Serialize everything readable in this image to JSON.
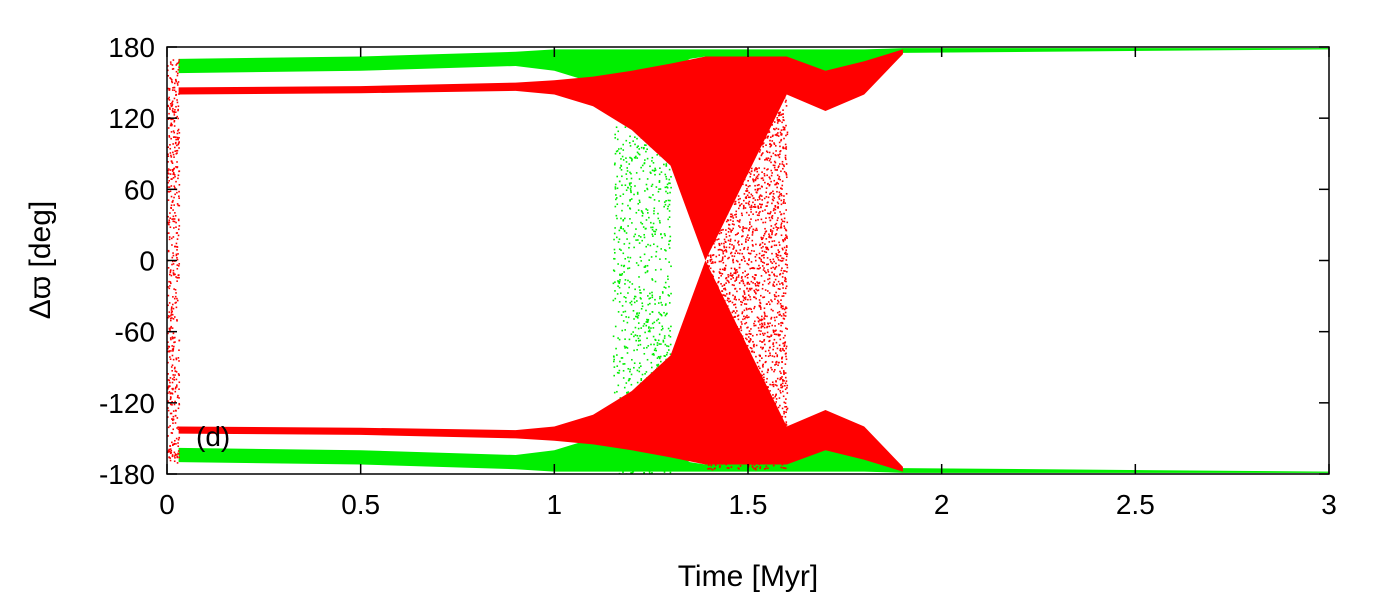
{
  "chart_data": {
    "type": "scatter",
    "title": "",
    "xlabel": "Time [Myr]",
    "ylabel": "Δϖ [deg]",
    "xlim": [
      0,
      3
    ],
    "ylim": [
      -180,
      180
    ],
    "xticks": [
      0,
      0.5,
      1,
      1.5,
      2,
      2.5,
      3
    ],
    "xtick_labels": [
      "0",
      "0.5",
      "1",
      "1.5",
      "2",
      "2.5",
      "3"
    ],
    "yticks": [
      -180,
      -120,
      -60,
      0,
      60,
      120,
      180
    ],
    "ytick_labels": [
      "-180",
      "-120",
      "-60",
      "0",
      "60",
      "120",
      "180"
    ],
    "annotation": "(d)",
    "grid": false,
    "legend": "none",
    "colors": {
      "series_a": "#00ee00",
      "series_b": "#ff0000"
    },
    "series": [
      {
        "color": "#00ee00",
        "band_envelope": {
          "x": [
            0.03,
            0.5,
            0.9,
            1.0,
            1.1,
            1.2,
            1.3,
            1.35,
            1.39,
            1.6,
            1.7,
            1.8,
            1.9,
            3.0
          ],
          "lower": [
            158,
            160,
            164,
            160,
            150,
            120,
            160,
            170,
            172,
            164,
            155,
            160,
            175,
            178
          ],
          "upper": [
            170,
            172,
            176,
            178,
            178,
            178,
            178,
            178,
            178,
            178,
            178,
            178,
            179,
            179
          ]
        },
        "scattered_region": {
          "x": [
            1.15,
            1.3
          ],
          "y": [
            -180,
            130
          ]
        }
      },
      {
        "color": "#ff0000",
        "band_envelope": {
          "x": [
            0.03,
            0.5,
            0.9,
            1.0,
            1.1,
            1.2,
            1.3,
            1.39,
            1.6,
            1.7,
            1.8,
            1.9
          ],
          "lower": [
            140,
            141,
            143,
            140,
            130,
            110,
            80,
            0,
            140,
            126,
            140,
            174
          ],
          "upper": [
            146,
            147,
            150,
            152,
            155,
            160,
            166,
            172,
            172,
            160,
            168,
            178
          ]
        },
        "scattered_region": {
          "x": [
            1.39,
            1.6
          ],
          "y": [
            -176,
            172
          ]
        }
      }
    ]
  }
}
